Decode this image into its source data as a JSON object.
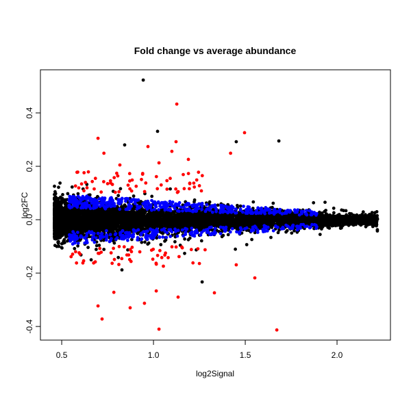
{
  "chart_data": {
    "type": "scatter",
    "title": "Fold change vs average abundance",
    "xlabel": "log2Signal",
    "ylabel": "log2FC",
    "xlim": [
      0.384,
      2.291
    ],
    "ylim": [
      -0.451,
      0.5615
    ],
    "xticks": [
      0.5,
      1.0,
      1.5,
      2.0
    ],
    "xtick_labels": [
      "0.5",
      "1.0",
      "1.5",
      "2.0"
    ],
    "yticks": [
      -0.4,
      -0.2,
      0.0,
      0.2,
      0.4
    ],
    "ytick_labels": [
      "-0.4",
      "-0.2",
      "0.0",
      "0.2",
      "0.4"
    ],
    "grid": false,
    "series_colors": {
      "not_significant": "#000000",
      "moderate": "#0000ff",
      "significant": "#ff0000"
    },
    "dense_cloud": {
      "note_series": [
        "not_significant",
        "moderate",
        "significant"
      ],
      "x_range": [
        0.46,
        2.22
      ],
      "counts": {
        "not_significant": 6000,
        "moderate": 700,
        "significant": 110
      },
      "spread_at_x_0_5": 0.05,
      "spread_at_x_2_0": 0.015
    },
    "outliers": [
      {
        "x": 0.944,
        "y": 0.523,
        "series": "not_significant"
      },
      {
        "x": 1.022,
        "y": 0.331,
        "series": "not_significant"
      },
      {
        "x": 1.683,
        "y": 0.295,
        "series": "not_significant"
      },
      {
        "x": 0.843,
        "y": 0.28,
        "series": "not_significant"
      },
      {
        "x": 1.451,
        "y": 0.292,
        "series": "not_significant"
      },
      {
        "x": 1.265,
        "y": -0.233,
        "series": "not_significant"
      },
      {
        "x": 0.698,
        "y": 0.305,
        "series": "significant"
      },
      {
        "x": 1.127,
        "y": 0.433,
        "series": "significant"
      },
      {
        "x": 0.97,
        "y": 0.274,
        "series": "significant"
      },
      {
        "x": 1.03,
        "y": 0.213,
        "series": "significant"
      },
      {
        "x": 1.496,
        "y": 0.326,
        "series": "significant"
      },
      {
        "x": 1.42,
        "y": 0.249,
        "series": "significant"
      },
      {
        "x": 1.123,
        "y": 0.292,
        "series": "significant"
      },
      {
        "x": 1.1,
        "y": 0.256,
        "series": "significant"
      },
      {
        "x": 0.73,
        "y": 0.249,
        "series": "significant"
      },
      {
        "x": 0.817,
        "y": 0.205,
        "series": "significant"
      },
      {
        "x": 1.19,
        "y": 0.226,
        "series": "significant"
      },
      {
        "x": 0.698,
        "y": -0.323,
        "series": "significant"
      },
      {
        "x": 0.72,
        "y": -0.372,
        "series": "significant"
      },
      {
        "x": 0.873,
        "y": -0.33,
        "series": "significant"
      },
      {
        "x": 0.951,
        "y": -0.313,
        "series": "significant"
      },
      {
        "x": 1.03,
        "y": -0.41,
        "series": "significant"
      },
      {
        "x": 1.015,
        "y": -0.267,
        "series": "significant"
      },
      {
        "x": 1.134,
        "y": -0.29,
        "series": "significant"
      },
      {
        "x": 1.332,
        "y": -0.274,
        "series": "significant"
      },
      {
        "x": 1.552,
        "y": -0.218,
        "series": "significant"
      },
      {
        "x": 1.672,
        "y": -0.413,
        "series": "significant"
      },
      {
        "x": 0.784,
        "y": -0.272,
        "series": "significant"
      },
      {
        "x": 1.451,
        "y": -0.169,
        "series": "significant"
      }
    ]
  }
}
